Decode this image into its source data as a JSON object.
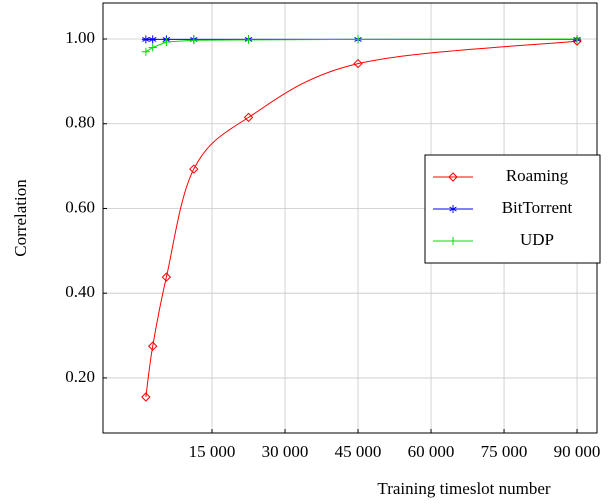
{
  "chart_data": {
    "type": "line",
    "x_label": "Training timeslot number",
    "y_label": "Correlation",
    "x": [
      1406,
      2812,
      5625,
      11250,
      22500,
      45000,
      90000
    ],
    "series": [
      {
        "name": "Roaming",
        "color": "#ff0000",
        "marker": "diamond",
        "smooth": true,
        "values": [
          0.155,
          0.275,
          0.438,
          0.693,
          0.815,
          0.942,
          0.995
        ]
      },
      {
        "name": "BitTorrent",
        "color": "#0000ff",
        "marker": "star",
        "smooth": false,
        "values": [
          0.999,
          0.999,
          0.999,
          0.999,
          0.999,
          0.999,
          0.999
        ]
      },
      {
        "name": "UDP",
        "color": "#00dd00",
        "marker": "plus",
        "smooth": false,
        "values": [
          0.97,
          0.98,
          0.993,
          0.997,
          0.998,
          0.999,
          1.0
        ]
      }
    ],
    "xlim": [
      -7400,
      94100
    ],
    "ylim": [
      0.07,
      1.085
    ],
    "xticks": [
      {
        "value": 15000,
        "label": "15 000"
      },
      {
        "value": 30000,
        "label": "30 000"
      },
      {
        "value": 45000,
        "label": "45 000"
      },
      {
        "value": 60000,
        "label": "60 000"
      },
      {
        "value": 75000,
        "label": "75 000"
      },
      {
        "value": 90000,
        "label": "90 000"
      }
    ],
    "yticks": [
      {
        "value": 0.2,
        "label": "0.20"
      },
      {
        "value": 0.4,
        "label": "0.40"
      },
      {
        "value": 0.6,
        "label": "0.60"
      },
      {
        "value": 0.8,
        "label": "0.80"
      },
      {
        "value": 1.0,
        "label": "1.00"
      }
    ],
    "grid": true,
    "legend": "right"
  }
}
